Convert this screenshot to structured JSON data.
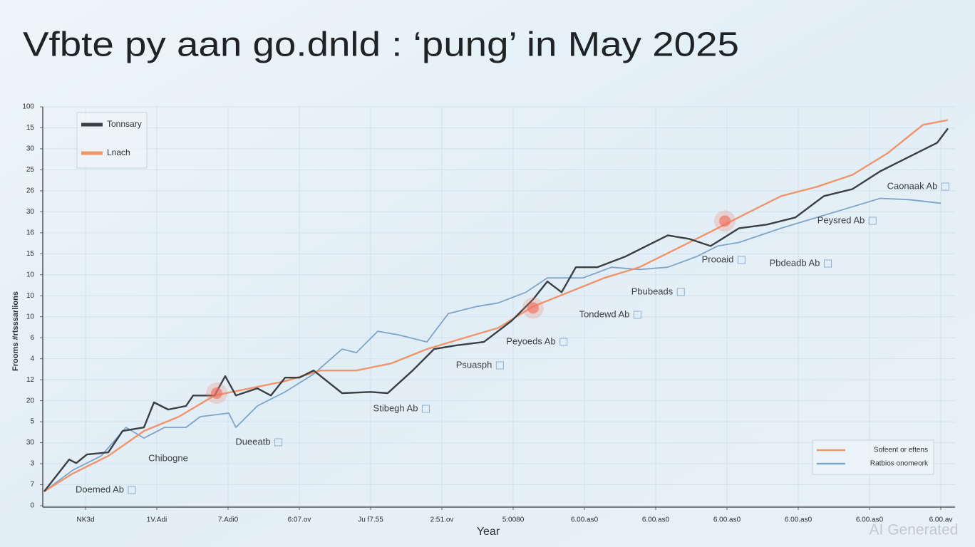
{
  "chart_data": {
    "type": "line",
    "title": "Vfbte py aan go.dnld : ‘pung’ in May 2025",
    "x_label": "Year",
    "y_label": "Frooms #rtsssarlions",
    "watermark": "AI Generated",
    "xlim": [
      -0.6,
      12.2
    ],
    "ylim": [
      0,
      19
    ],
    "xticks": [
      {
        "value": 0,
        "label": "NK3d"
      },
      {
        "value": 1,
        "label": "1V.Adi"
      },
      {
        "value": 2,
        "label": "7.Adi0"
      },
      {
        "value": 3,
        "label": "6:07.ov"
      },
      {
        "value": 4,
        "label": "Ju f7.55"
      },
      {
        "value": 5,
        "label": "2:51.ov"
      },
      {
        "value": 6,
        "label": "5:0080"
      },
      {
        "value": 7,
        "label": "6.00.as0"
      },
      {
        "value": 8,
        "label": "6.00.as0"
      },
      {
        "value": 9,
        "label": "6.00.as0"
      },
      {
        "value": 10,
        "label": "6.00.as0"
      },
      {
        "value": 11,
        "label": "6.00.as0"
      },
      {
        "value": 12,
        "label": "6.00.av"
      }
    ],
    "yticks": [
      0,
      {
        "value": 1,
        "label": "7"
      },
      {
        "value": 2,
        "label": "3"
      },
      {
        "value": 3,
        "label": "30"
      },
      {
        "value": 4,
        "label": "5"
      },
      {
        "value": 5,
        "label": "20"
      },
      {
        "value": 6,
        "label": "12"
      },
      {
        "value": 7,
        "label": "4"
      },
      {
        "value": 8,
        "label": "6"
      },
      {
        "value": 9,
        "label": "10"
      },
      {
        "value": 10,
        "label": "10"
      },
      {
        "value": 11,
        "label": "10"
      },
      {
        "value": 12,
        "label": "15"
      },
      {
        "value": 13,
        "label": "16"
      },
      {
        "value": 14,
        "label": "30"
      },
      {
        "value": 15,
        "label": "26"
      },
      {
        "value": 16,
        "label": "25"
      },
      {
        "value": 17,
        "label": "30"
      },
      {
        "value": 18,
        "label": "15"
      },
      {
        "value": 19,
        "label": "100"
      }
    ],
    "grid": true,
    "series": [
      {
        "color": "#3a3f44",
        "x": [
          -0.58,
          -0.23,
          -0.13,
          0.02,
          0.32,
          0.52,
          0.82,
          0.96,
          1.16,
          1.41,
          1.51,
          1.81,
          1.96,
          2.11,
          2.41,
          2.6,
          2.8,
          3.0,
          3.2,
          3.6,
          4.0,
          4.24,
          4.59,
          4.89,
          5.19,
          5.59,
          5.98,
          6.28,
          6.48,
          6.68,
          6.88,
          7.18,
          7.57,
          7.97,
          8.17,
          8.47,
          8.77,
          9.17,
          9.56,
          9.96,
          10.36,
          10.76,
          11.15,
          11.55,
          11.95,
          12.1
        ],
        "values": [
          0.68,
          2.2,
          2.03,
          2.44,
          2.54,
          3.56,
          3.73,
          4.92,
          4.58,
          4.75,
          5.25,
          5.25,
          6.17,
          5.25,
          5.59,
          5.25,
          6.1,
          6.1,
          6.44,
          5.36,
          5.42,
          5.36,
          6.44,
          7.46,
          7.63,
          7.8,
          8.81,
          9.83,
          10.68,
          10.17,
          11.36,
          11.36,
          11.86,
          12.54,
          12.88,
          12.71,
          12.37,
          13.22,
          13.39,
          13.73,
          14.75,
          15.08,
          15.93,
          16.61,
          17.29,
          17.97
        ]
      },
      {
        "color": "#f0956a",
        "x": [
          -0.58,
          -0.18,
          0.32,
          0.82,
          1.31,
          1.81,
          2.31,
          2.8,
          3.3,
          3.8,
          4.29,
          4.79,
          5.29,
          5.79,
          6.28,
          6.78,
          7.28,
          7.77,
          8.27,
          8.77,
          9.26,
          9.76,
          10.26,
          10.76,
          11.25,
          11.75,
          12.1
        ],
        "values": [
          0.68,
          1.53,
          2.37,
          3.56,
          4.24,
          5.25,
          5.59,
          5.93,
          6.44,
          6.44,
          6.78,
          7.46,
          7.97,
          8.47,
          9.49,
          10.17,
          10.85,
          11.36,
          12.2,
          13.05,
          13.9,
          14.75,
          15.19,
          15.76,
          16.78,
          18.14,
          18.37
        ]
      },
      {
        "color": "#7ea4c8",
        "x": [
          -0.58,
          -0.18,
          0.22,
          0.57,
          0.82,
          1.11,
          1.41,
          1.61,
          2.01,
          2.11,
          2.41,
          2.8,
          3.2,
          3.6,
          3.8,
          4.1,
          4.39,
          4.79,
          5.09,
          5.49,
          5.79,
          6.18,
          6.48,
          6.98,
          7.38,
          7.77,
          8.17,
          8.57,
          8.87,
          9.17,
          9.76,
          10.26,
          10.76,
          11.15,
          11.55,
          12.0
        ],
        "values": [
          0.68,
          1.69,
          2.37,
          3.73,
          3.22,
          3.73,
          3.73,
          4.24,
          4.41,
          3.73,
          4.75,
          5.42,
          6.27,
          7.46,
          7.29,
          8.31,
          8.14,
          7.8,
          9.15,
          9.49,
          9.66,
          10.17,
          10.85,
          10.85,
          11.36,
          11.25,
          11.36,
          11.86,
          12.37,
          12.54,
          13.22,
          13.73,
          14.24,
          14.64,
          14.58,
          14.41
        ]
      }
    ],
    "highlights": [
      {
        "x": 1.84,
        "y": 5.36
      },
      {
        "x": 6.28,
        "y": 9.42
      },
      {
        "x": 8.97,
        "y": 13.56
      }
    ],
    "legends": [
      {
        "loc": "upper left",
        "entries": [
          {
            "name": "Tonnsary",
            "color": "#3a3f44"
          },
          {
            "name": "Lnach",
            "color": "#f0956a"
          }
        ]
      },
      {
        "loc": "lower right",
        "entries": [
          {
            "name": "Sofeent or eftens",
            "color": "#f0956a"
          },
          {
            "name": "Ratbios onomeork",
            "color": "#7ea4c8"
          }
        ]
      }
    ],
    "annotations": [
      "Doemed Ab",
      "Chibogne",
      "Dueeatb",
      "Stibegh Ab",
      "Psuasph",
      "Peyoeds Ab",
      "Tondewd Ab",
      "Pbubeads",
      "Prooaid",
      "Pbdeadb Ab",
      "Peysred Ab",
      "Caonaak Ab"
    ]
  }
}
